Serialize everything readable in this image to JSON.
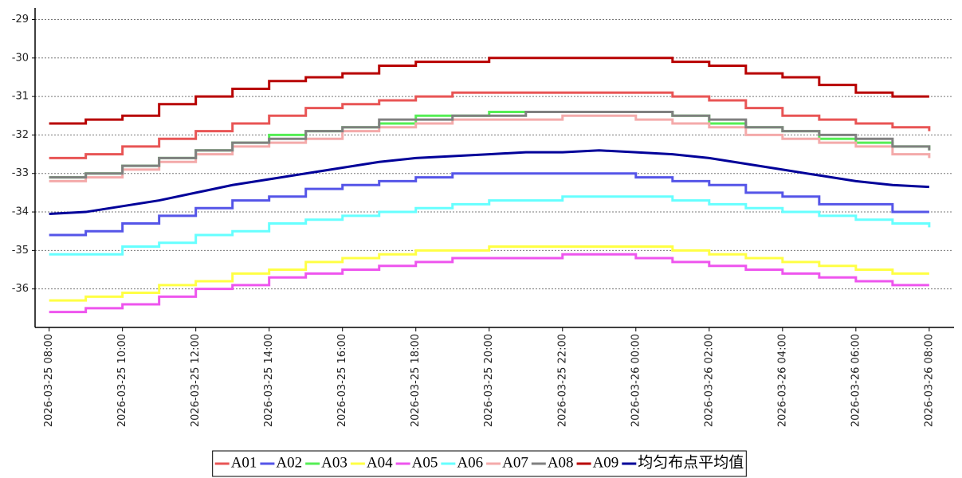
{
  "chart_data": {
    "type": "step-line",
    "x": [
      "2026-03-25 08:00",
      "2026-03-25 09:00",
      "2026-03-25 10:00",
      "2026-03-25 11:00",
      "2026-03-25 12:00",
      "2026-03-25 13:00",
      "2026-03-25 14:00",
      "2026-03-25 15:00",
      "2026-03-25 16:00",
      "2026-03-25 17:00",
      "2026-03-25 18:00",
      "2026-03-25 19:00",
      "2026-03-25 20:00",
      "2026-03-25 21:00",
      "2026-03-25 22:00",
      "2026-03-25 23:00",
      "2026-03-26 00:00",
      "2026-03-26 01:00",
      "2026-03-26 02:00",
      "2026-03-26 03:00",
      "2026-03-26 04:00",
      "2026-03-26 05:00",
      "2026-03-26 06:00",
      "2026-03-26 07:00",
      "2026-03-26 08:00"
    ],
    "xlim": [
      "2026-03-25 07:37",
      "2026-03-26 08:38"
    ],
    "xticks": [
      "2026-03-25 08:00",
      "2026-03-25 10:00",
      "2026-03-25 12:00",
      "2026-03-25 14:00",
      "2026-03-25 16:00",
      "2026-03-25 18:00",
      "2026-03-25 20:00",
      "2026-03-25 22:00",
      "2026-03-26 00:00",
      "2026-03-26 02:00",
      "2026-03-26 04:00",
      "2026-03-26 06:00",
      "2026-03-26 08:00"
    ],
    "ylim": [
      -37,
      -28.7
    ],
    "yticks": [
      -36,
      -35,
      -34,
      -33,
      -32,
      -31,
      -30,
      -29
    ],
    "grid": true,
    "legend": "bottom",
    "series": [
      {
        "name": "A01",
        "color": "#e85555",
        "values": [
          -32.6,
          -32.5,
          -32.3,
          -32.1,
          -31.9,
          -31.7,
          -31.5,
          -31.3,
          -31.2,
          -31.1,
          -31.0,
          -30.9,
          -30.9,
          -30.9,
          -30.9,
          -30.9,
          -30.9,
          -31.0,
          -31.1,
          -31.3,
          -31.5,
          -31.6,
          -31.7,
          -31.8,
          -31.9
        ]
      },
      {
        "name": "A02",
        "color": "#5555e8",
        "values": [
          -34.6,
          -34.5,
          -34.3,
          -34.1,
          -33.9,
          -33.7,
          -33.6,
          -33.4,
          -33.3,
          -33.2,
          -33.1,
          -33.0,
          -33.0,
          -33.0,
          -33.0,
          -33.0,
          -33.1,
          -33.2,
          -33.3,
          -33.5,
          -33.6,
          -33.8,
          -33.8,
          -34.0,
          -34.0
        ]
      },
      {
        "name": "A03",
        "color": "#55ee55",
        "values": [
          -33.1,
          -33.0,
          -32.8,
          -32.6,
          -32.4,
          -32.2,
          -32.0,
          -31.9,
          -31.8,
          -31.7,
          -31.5,
          -31.5,
          -31.4,
          -31.4,
          -31.4,
          -31.4,
          -31.4,
          -31.5,
          -31.7,
          -31.8,
          -31.9,
          -32.1,
          -32.2,
          -32.3,
          -32.4
        ]
      },
      {
        "name": "A04",
        "color": "#ffff44",
        "values": [
          -36.3,
          -36.2,
          -36.1,
          -35.9,
          -35.8,
          -35.6,
          -35.5,
          -35.3,
          -35.2,
          -35.1,
          -35.0,
          -35.0,
          -34.9,
          -34.9,
          -34.9,
          -34.9,
          -34.9,
          -35.0,
          -35.1,
          -35.2,
          -35.3,
          -35.4,
          -35.5,
          -35.6,
          -35.6
        ]
      },
      {
        "name": "A05",
        "color": "#ee55ee",
        "values": [
          -36.6,
          -36.5,
          -36.4,
          -36.2,
          -36.0,
          -35.9,
          -35.7,
          -35.6,
          -35.5,
          -35.4,
          -35.3,
          -35.2,
          -35.2,
          -35.2,
          -35.1,
          -35.1,
          -35.2,
          -35.3,
          -35.4,
          -35.5,
          -35.6,
          -35.7,
          -35.8,
          -35.9,
          -35.9
        ]
      },
      {
        "name": "A06",
        "color": "#66ffff",
        "values": [
          -35.1,
          -35.1,
          -34.9,
          -34.8,
          -34.6,
          -34.5,
          -34.3,
          -34.2,
          -34.1,
          -34.0,
          -33.9,
          -33.8,
          -33.7,
          -33.7,
          -33.6,
          -33.6,
          -33.6,
          -33.7,
          -33.8,
          -33.9,
          -34.0,
          -34.1,
          -34.2,
          -34.3,
          -34.4
        ]
      },
      {
        "name": "A07",
        "color": "#f4aaaa",
        "values": [
          -33.2,
          -33.1,
          -32.9,
          -32.7,
          -32.5,
          -32.3,
          -32.2,
          -32.1,
          -31.9,
          -31.8,
          -31.7,
          -31.6,
          -31.6,
          -31.6,
          -31.5,
          -31.5,
          -31.6,
          -31.7,
          -31.8,
          -32.0,
          -32.1,
          -32.2,
          -32.3,
          -32.5,
          -32.6
        ]
      },
      {
        "name": "A08",
        "color": "#808080",
        "values": [
          -33.1,
          -33.0,
          -32.8,
          -32.6,
          -32.4,
          -32.2,
          -32.1,
          -31.9,
          -31.8,
          -31.6,
          -31.6,
          -31.5,
          -31.5,
          -31.4,
          -31.4,
          -31.4,
          -31.4,
          -31.5,
          -31.6,
          -31.8,
          -31.9,
          -32.0,
          -32.1,
          -32.3,
          -32.4
        ]
      },
      {
        "name": "A09",
        "color": "#b80000",
        "values": [
          -31.7,
          -31.6,
          -31.5,
          -31.2,
          -31.0,
          -30.8,
          -30.6,
          -30.5,
          -30.4,
          -30.2,
          -30.1,
          -30.1,
          -30.0,
          -30.0,
          -30.0,
          -30.0,
          -30.0,
          -30.1,
          -30.2,
          -30.4,
          -30.5,
          -30.7,
          -30.9,
          -31.0,
          -31.0
        ]
      },
      {
        "name": "均匀布点平均值",
        "color": "#000099",
        "values": [
          -34.05,
          -34.0,
          -33.85,
          -33.7,
          -33.5,
          -33.3,
          -33.15,
          -33.0,
          -32.85,
          -32.7,
          -32.6,
          -32.55,
          -32.5,
          -32.45,
          -32.45,
          -32.4,
          -32.45,
          -32.5,
          -32.6,
          -32.75,
          -32.9,
          -33.05,
          -33.2,
          -33.3,
          -33.35
        ]
      }
    ]
  }
}
